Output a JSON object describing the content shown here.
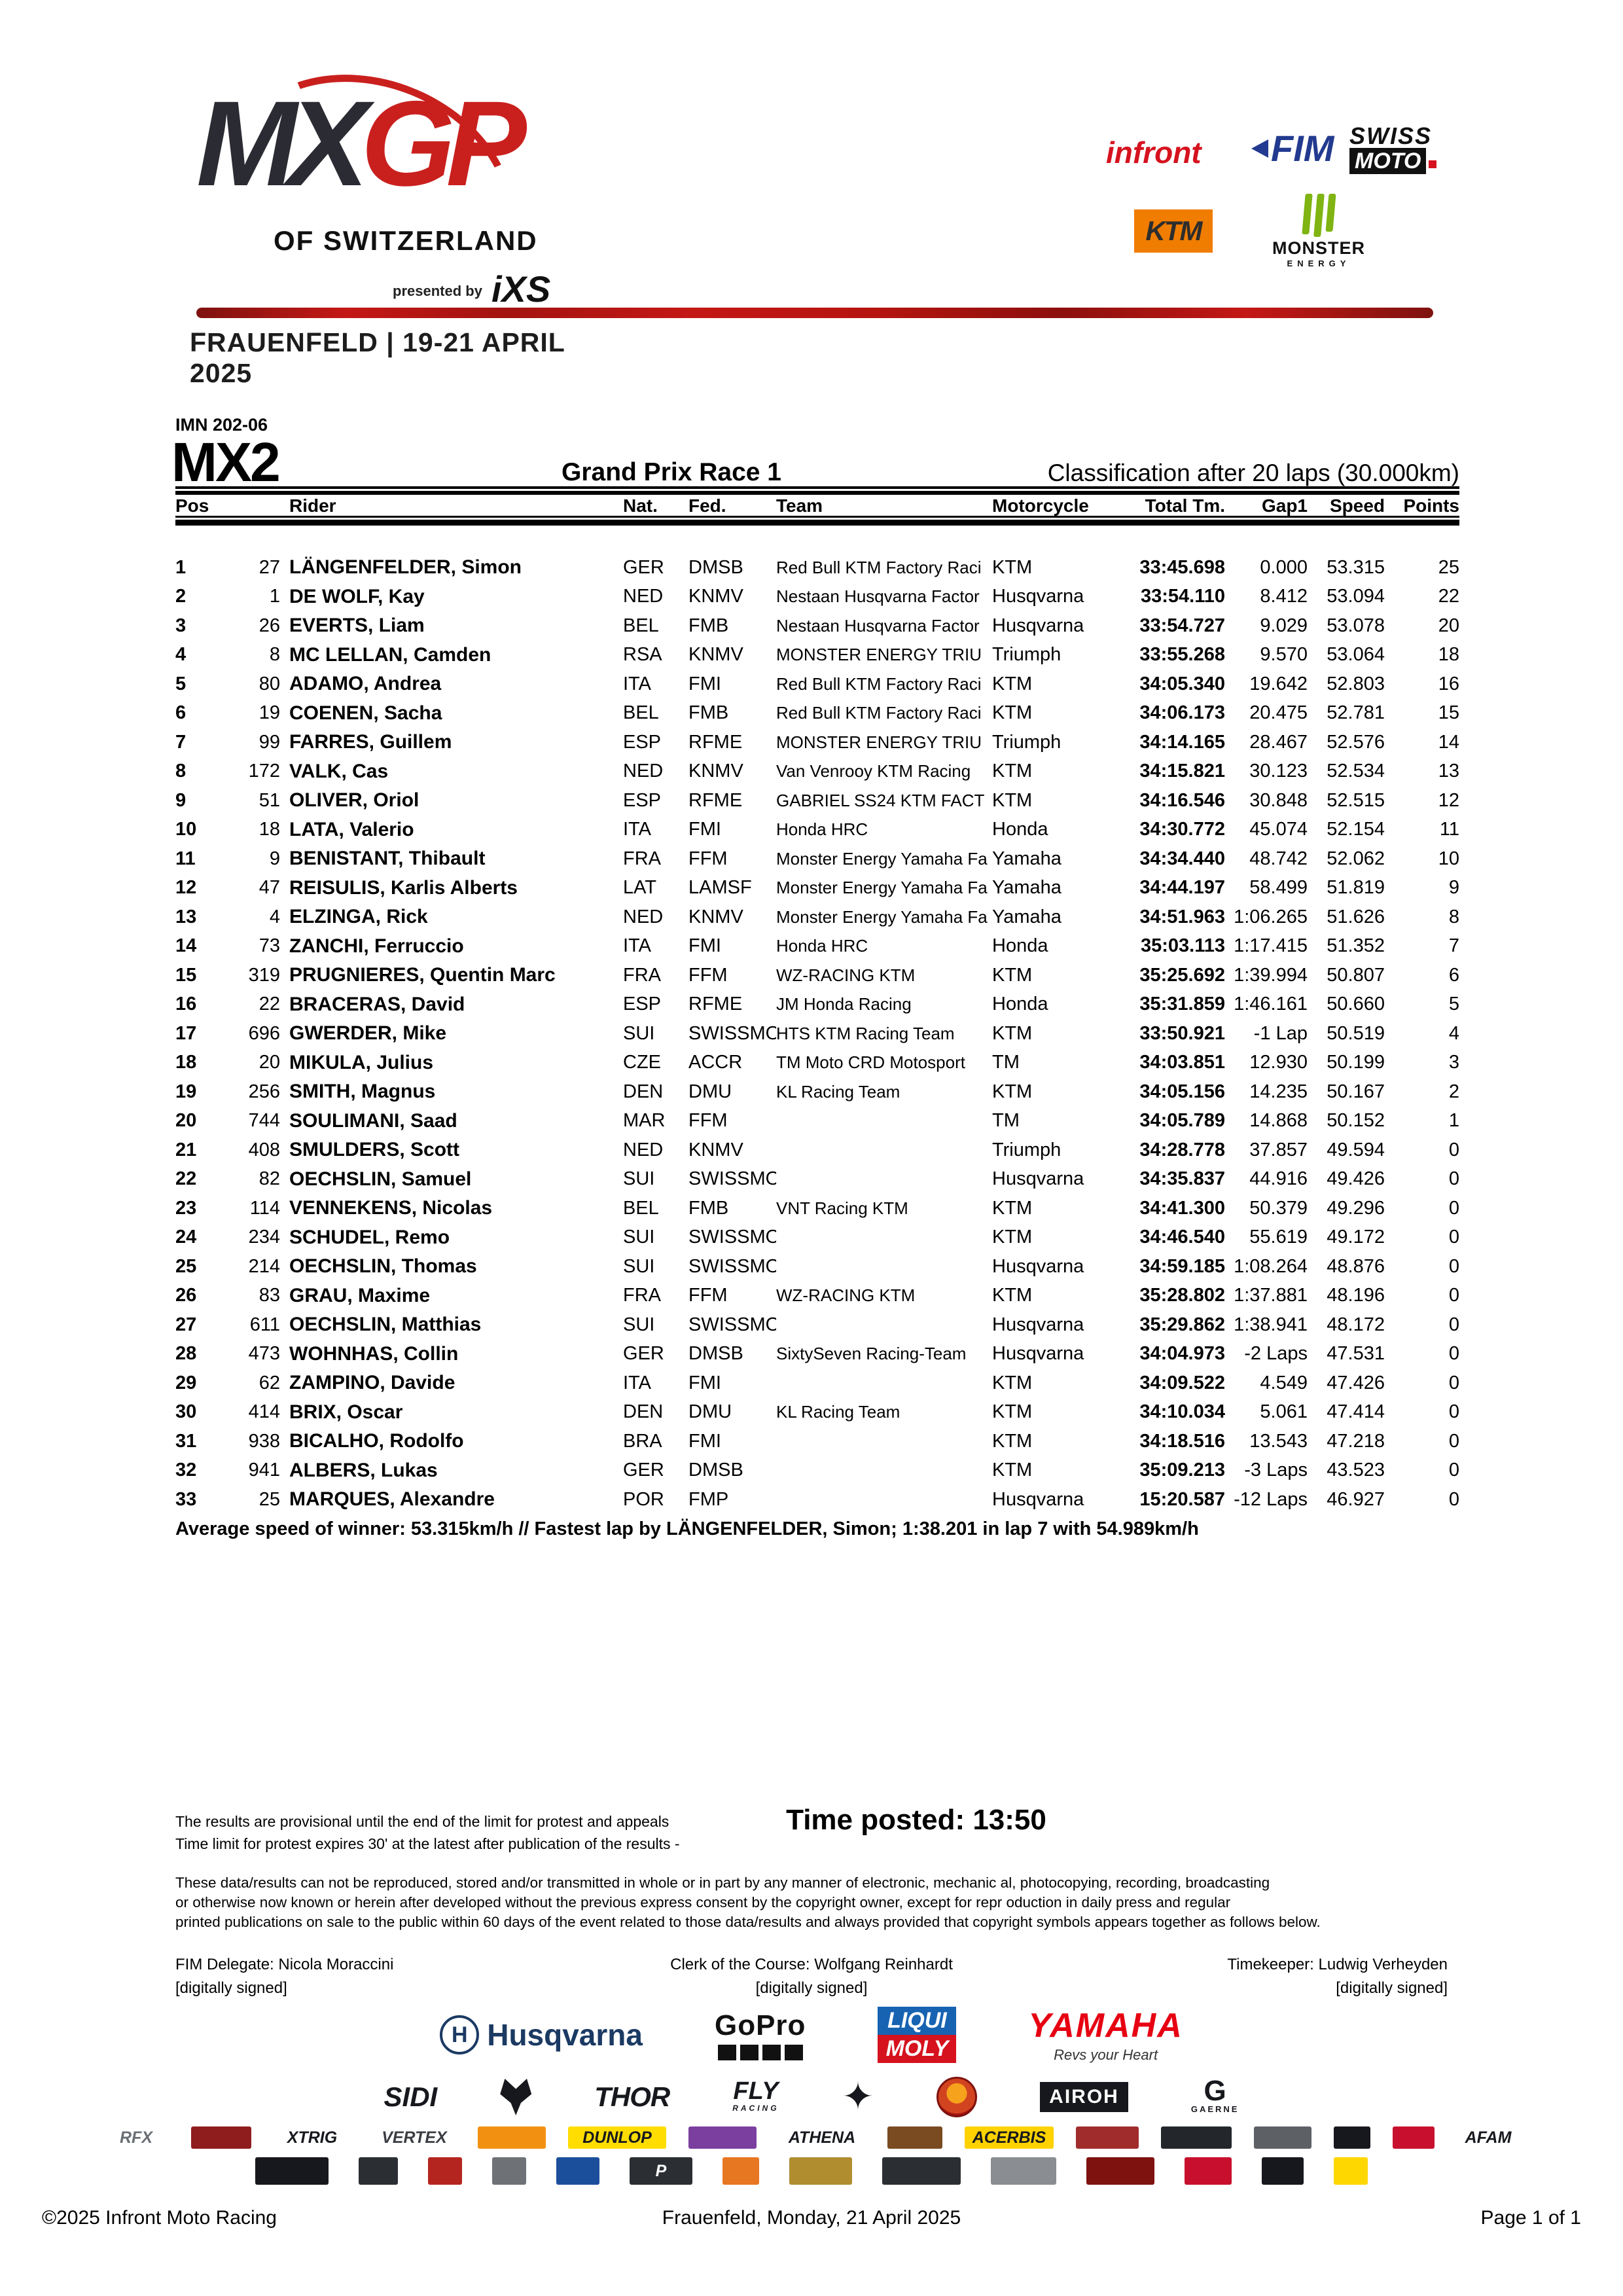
{
  "event_logo": {
    "mx": "MX",
    "gp": "GP",
    "subtitle": "OF SWITZERLAND",
    "presented_by": "presented by",
    "presenter": "iXS",
    "location": "FRAUENFELD | 19-21 APRIL 2025"
  },
  "sponsors_top": {
    "infront": "infront",
    "fim": "FIM",
    "swiss_line1": "SWISS",
    "swiss_line2": "MOTO",
    "ktm": "KTM",
    "monster_line1": "MONSTER",
    "monster_line2": "ENERGY"
  },
  "doc": {
    "imn": "IMN 202-06",
    "category": "MX2",
    "race_title": "Grand Prix Race 1",
    "classification": "Classification after 20 laps (30.000km)"
  },
  "table": {
    "columns": [
      "Pos",
      "Rider",
      "Nat.",
      "Fed.",
      "Team",
      "Motorcycle",
      "Total Tm.",
      "Gap1",
      "Speed",
      "Points"
    ],
    "rows": [
      {
        "pos": "1",
        "num": "27",
        "name": "LÄNGENFELDER, Simon",
        "nat": "GER",
        "fed": "DMSB",
        "team": "Red Bull KTM Factory Raci",
        "moto": "KTM",
        "total": "33:45.698",
        "gap": "0.000",
        "speed": "53.315",
        "pts": "25"
      },
      {
        "pos": "2",
        "num": "1",
        "name": "DE WOLF, Kay",
        "nat": "NED",
        "fed": "KNMV",
        "team": "Nestaan Husqvarna Factor",
        "moto": "Husqvarna",
        "total": "33:54.110",
        "gap": "8.412",
        "speed": "53.094",
        "pts": "22"
      },
      {
        "pos": "3",
        "num": "26",
        "name": "EVERTS, Liam",
        "nat": "BEL",
        "fed": "FMB",
        "team": "Nestaan Husqvarna Factor",
        "moto": "Husqvarna",
        "total": "33:54.727",
        "gap": "9.029",
        "speed": "53.078",
        "pts": "20"
      },
      {
        "pos": "4",
        "num": "8",
        "name": "MC LELLAN, Camden",
        "nat": "RSA",
        "fed": "KNMV",
        "team": "MONSTER ENERGY TRIU",
        "moto": "Triumph",
        "total": "33:55.268",
        "gap": "9.570",
        "speed": "53.064",
        "pts": "18"
      },
      {
        "pos": "5",
        "num": "80",
        "name": "ADAMO, Andrea",
        "nat": "ITA",
        "fed": "FMI",
        "team": "Red Bull KTM Factory Raci",
        "moto": "KTM",
        "total": "34:05.340",
        "gap": "19.642",
        "speed": "52.803",
        "pts": "16"
      },
      {
        "pos": "6",
        "num": "19",
        "name": "COENEN, Sacha",
        "nat": "BEL",
        "fed": "FMB",
        "team": "Red Bull KTM Factory Raci",
        "moto": "KTM",
        "total": "34:06.173",
        "gap": "20.475",
        "speed": "52.781",
        "pts": "15"
      },
      {
        "pos": "7",
        "num": "99",
        "name": "FARRES, Guillem",
        "nat": "ESP",
        "fed": "RFME",
        "team": "MONSTER ENERGY TRIU",
        "moto": "Triumph",
        "total": "34:14.165",
        "gap": "28.467",
        "speed": "52.576",
        "pts": "14"
      },
      {
        "pos": "8",
        "num": "172",
        "name": "VALK, Cas",
        "nat": "NED",
        "fed": "KNMV",
        "team": "Van Venrooy KTM Racing",
        "moto": "KTM",
        "total": "34:15.821",
        "gap": "30.123",
        "speed": "52.534",
        "pts": "13"
      },
      {
        "pos": "9",
        "num": "51",
        "name": "OLIVER, Oriol",
        "nat": "ESP",
        "fed": "RFME",
        "team": "GABRIEL SS24 KTM FACT",
        "moto": "KTM",
        "total": "34:16.546",
        "gap": "30.848",
        "speed": "52.515",
        "pts": "12"
      },
      {
        "pos": "10",
        "num": "18",
        "name": "LATA, Valerio",
        "nat": "ITA",
        "fed": "FMI",
        "team": "Honda HRC",
        "moto": "Honda",
        "total": "34:30.772",
        "gap": "45.074",
        "speed": "52.154",
        "pts": "11"
      },
      {
        "pos": "11",
        "num": "9",
        "name": "BENISTANT, Thibault",
        "nat": "FRA",
        "fed": "FFM",
        "team": "Monster Energy Yamaha Fa",
        "moto": "Yamaha",
        "total": "34:34.440",
        "gap": "48.742",
        "speed": "52.062",
        "pts": "10"
      },
      {
        "pos": "12",
        "num": "47",
        "name": "REISULIS, Karlis Alberts",
        "nat": "LAT",
        "fed": "LAMSF",
        "team": "Monster Energy Yamaha Fa",
        "moto": "Yamaha",
        "total": "34:44.197",
        "gap": "58.499",
        "speed": "51.819",
        "pts": "9"
      },
      {
        "pos": "13",
        "num": "4",
        "name": "ELZINGA, Rick",
        "nat": "NED",
        "fed": "KNMV",
        "team": "Monster Energy Yamaha Fa",
        "moto": "Yamaha",
        "total": "34:51.963",
        "gap": "1:06.265",
        "speed": "51.626",
        "pts": "8"
      },
      {
        "pos": "14",
        "num": "73",
        "name": "ZANCHI, Ferruccio",
        "nat": "ITA",
        "fed": "FMI",
        "team": "Honda HRC",
        "moto": "Honda",
        "total": "35:03.113",
        "gap": "1:17.415",
        "speed": "51.352",
        "pts": "7"
      },
      {
        "pos": "15",
        "num": "319",
        "name": "PRUGNIERES, Quentin Marc",
        "nat": "FRA",
        "fed": "FFM",
        "team": "WZ-RACING KTM",
        "moto": "KTM",
        "total": "35:25.692",
        "gap": "1:39.994",
        "speed": "50.807",
        "pts": "6"
      },
      {
        "pos": "16",
        "num": "22",
        "name": "BRACERAS, David",
        "nat": "ESP",
        "fed": "RFME",
        "team": "JM Honda Racing",
        "moto": "Honda",
        "total": "35:31.859",
        "gap": "1:46.161",
        "speed": "50.660",
        "pts": "5"
      },
      {
        "pos": "17",
        "num": "696",
        "name": "GWERDER, Mike",
        "nat": "SUI",
        "fed": "SWISSMO",
        "team": "HTS KTM Racing Team",
        "moto": "KTM",
        "total": "33:50.921",
        "gap": "-1 Lap",
        "speed": "50.519",
        "pts": "4"
      },
      {
        "pos": "18",
        "num": "20",
        "name": "MIKULA, Julius",
        "nat": "CZE",
        "fed": "ACCR",
        "team": "TM Moto CRD Motosport",
        "moto": "TM",
        "total": "34:03.851",
        "gap": "12.930",
        "speed": "50.199",
        "pts": "3"
      },
      {
        "pos": "19",
        "num": "256",
        "name": "SMITH, Magnus",
        "nat": "DEN",
        "fed": "DMU",
        "team": "KL Racing Team",
        "moto": "KTM",
        "total": "34:05.156",
        "gap": "14.235",
        "speed": "50.167",
        "pts": "2"
      },
      {
        "pos": "20",
        "num": "744",
        "name": "SOULIMANI, Saad",
        "nat": "MAR",
        "fed": "FFM",
        "team": "",
        "moto": "TM",
        "total": "34:05.789",
        "gap": "14.868",
        "speed": "50.152",
        "pts": "1"
      },
      {
        "pos": "21",
        "num": "408",
        "name": "SMULDERS, Scott",
        "nat": "NED",
        "fed": "KNMV",
        "team": "",
        "moto": "Triumph",
        "total": "34:28.778",
        "gap": "37.857",
        "speed": "49.594",
        "pts": "0"
      },
      {
        "pos": "22",
        "num": "82",
        "name": "OECHSLIN, Samuel",
        "nat": "SUI",
        "fed": "SWISSMO",
        "team": "",
        "moto": "Husqvarna",
        "total": "34:35.837",
        "gap": "44.916",
        "speed": "49.426",
        "pts": "0"
      },
      {
        "pos": "23",
        "num": "114",
        "name": "VENNEKENS, Nicolas",
        "nat": "BEL",
        "fed": "FMB",
        "team": "VNT Racing KTM",
        "moto": "KTM",
        "total": "34:41.300",
        "gap": "50.379",
        "speed": "49.296",
        "pts": "0"
      },
      {
        "pos": "24",
        "num": "234",
        "name": "SCHUDEL, Remo",
        "nat": "SUI",
        "fed": "SWISSMO",
        "team": "",
        "moto": "KTM",
        "total": "34:46.540",
        "gap": "55.619",
        "speed": "49.172",
        "pts": "0"
      },
      {
        "pos": "25",
        "num": "214",
        "name": "OECHSLIN, Thomas",
        "nat": "SUI",
        "fed": "SWISSMO",
        "team": "",
        "moto": "Husqvarna",
        "total": "34:59.185",
        "gap": "1:08.264",
        "speed": "48.876",
        "pts": "0"
      },
      {
        "pos": "26",
        "num": "83",
        "name": "GRAU, Maxime",
        "nat": "FRA",
        "fed": "FFM",
        "team": "WZ-RACING KTM",
        "moto": "KTM",
        "total": "35:28.802",
        "gap": "1:37.881",
        "speed": "48.196",
        "pts": "0"
      },
      {
        "pos": "27",
        "num": "611",
        "name": "OECHSLIN, Matthias",
        "nat": "SUI",
        "fed": "SWISSMO",
        "team": "",
        "moto": "Husqvarna",
        "total": "35:29.862",
        "gap": "1:38.941",
        "speed": "48.172",
        "pts": "0"
      },
      {
        "pos": "28",
        "num": "473",
        "name": "WOHNHAS, Collin",
        "nat": "GER",
        "fed": "DMSB",
        "team": "SixtySeven Racing-Team",
        "moto": "Husqvarna",
        "total": "34:04.973",
        "gap": "-2 Laps",
        "speed": "47.531",
        "pts": "0"
      },
      {
        "pos": "29",
        "num": "62",
        "name": "ZAMPINO, Davide",
        "nat": "ITA",
        "fed": "FMI",
        "team": "",
        "moto": "KTM",
        "total": "34:09.522",
        "gap": "4.549",
        "speed": "47.426",
        "pts": "0"
      },
      {
        "pos": "30",
        "num": "414",
        "name": "BRIX, Oscar",
        "nat": "DEN",
        "fed": "DMU",
        "team": "KL Racing Team",
        "moto": "KTM",
        "total": "34:10.034",
        "gap": "5.061",
        "speed": "47.414",
        "pts": "0"
      },
      {
        "pos": "31",
        "num": "938",
        "name": "BICALHO, Rodolfo",
        "nat": "BRA",
        "fed": "FMI",
        "team": "",
        "moto": "KTM",
        "total": "34:18.516",
        "gap": "13.543",
        "speed": "47.218",
        "pts": "0"
      },
      {
        "pos": "32",
        "num": "941",
        "name": "ALBERS, Lukas",
        "nat": "GER",
        "fed": "DMSB",
        "team": "",
        "moto": "KTM",
        "total": "35:09.213",
        "gap": "-3 Laps",
        "speed": "43.523",
        "pts": "0"
      },
      {
        "pos": "33",
        "num": "25",
        "name": "MARQUES, Alexandre",
        "nat": "POR",
        "fed": "FMP",
        "team": "",
        "moto": "Husqvarna",
        "total": "15:20.587",
        "gap": "-12 Laps",
        "speed": "46.927",
        "pts": "0"
      }
    ]
  },
  "summary": "Average speed of winner: 53.315km/h   //   Fastest lap by LÄNGENFELDER, Simon; 1:38.201 in lap 7 with 54.989km/h",
  "notes": {
    "line1": "The results are provisional until the end of the limit for protest and appeals",
    "line2": "Time limit for protest expires 30' at the latest after publication of the results -",
    "time_posted": "Time posted: 13:50"
  },
  "legal": [
    "These data/results can not be reproduced, stored and/or transmitted in whole or in part by any manner of electronic, mechanic al, photocopying, recording, broadcasting",
    "or otherwise now known or herein after developed without the previous express consent by the copyright owner, except for repr oduction in daily press and regular",
    "printed publications on sale to the public within 60 days of the event related to those data/results and always provided that  copyright symbols appears together as follows below."
  ],
  "officials": {
    "left_role": "FIM Delegate: Nicola Moraccini",
    "left_signed": "[digitally signed]",
    "center_role": "Clerk of the Course: Wolfgang Reinhardt",
    "center_signed": "[digitally signed]",
    "right_role": "Timekeeper: Ludwig Verheyden",
    "right_signed": "[digitally signed]"
  },
  "sponsors_bottom": {
    "row1": {
      "husqvarna_initial": "H",
      "husqvarna": "Husqvarna",
      "gopro": "GoPro",
      "liqui": "LIQUI",
      "moly": "MOLY",
      "yamaha": "YAMAHA",
      "yamaha_tag": "Revs your Heart"
    },
    "row2": {
      "sidi": "SIDI",
      "thor": "THOR",
      "fly": "FLY",
      "fly_sub": "RACING",
      "star": "✦",
      "airoh": "AIROH",
      "gaerne_g": "G",
      "gaerne": "GAERNE"
    },
    "row3": [
      {
        "label": "RFX",
        "bg": "",
        "fg": "#6a6f75",
        "w": 100
      },
      {
        "label": "",
        "bg": "#8f1d1d",
        "fg": "#ffffff",
        "w": 92
      },
      {
        "label": "XTRIG",
        "bg": "",
        "fg": "#16181d",
        "w": 118
      },
      {
        "label": "VERTEX",
        "bg": "",
        "fg": "#3a3d42",
        "w": 126
      },
      {
        "label": "",
        "bg": "#f29111",
        "fg": "#16181d",
        "w": 104
      },
      {
        "label": "DUNLOP",
        "bg": "#ffdd00",
        "fg": "#16181d",
        "w": 150
      },
      {
        "label": "",
        "bg": "#7b3fa0",
        "fg": "#ffffff",
        "w": 104
      },
      {
        "label": "ATHENA",
        "bg": "",
        "fg": "#16181d",
        "w": 132
      },
      {
        "label": "",
        "bg": "#7a4a21",
        "fg": "#ffffff",
        "w": 84
      },
      {
        "label": "ACERBIS",
        "bg": "#ffd200",
        "fg": "#16181d",
        "w": 136
      },
      {
        "label": "",
        "bg": "#a02c2c",
        "fg": "#ffffff",
        "w": 96
      },
      {
        "label": "",
        "bg": "#23272b",
        "fg": "#ffffff",
        "w": 108
      },
      {
        "label": "",
        "bg": "#5d6065",
        "fg": "#ffffff",
        "w": 88
      },
      {
        "label": "",
        "bg": "#16181d",
        "fg": "#ffffff",
        "w": 56
      },
      {
        "label": "",
        "bg": "#c8102e",
        "fg": "#ffffff",
        "w": 64
      },
      {
        "label": "AFAM",
        "bg": "",
        "fg": "#16181d",
        "w": 96
      }
    ],
    "row4": [
      {
        "label": "",
        "bg": "#16181d",
        "fg": "#ffd200",
        "w": 112
      },
      {
        "label": "",
        "bg": "#2b2f33",
        "fg": "#ffffff",
        "w": 60
      },
      {
        "label": "",
        "bg": "#b5251f",
        "fg": "#ffffff",
        "w": 52
      },
      {
        "label": "",
        "bg": "#6e7277",
        "fg": "#ffffff",
        "w": 52
      },
      {
        "label": "",
        "bg": "#1b4f9c",
        "fg": "#ffffff",
        "w": 66
      },
      {
        "label": "P",
        "bg": "#2b2f33",
        "fg": "#ffffff",
        "w": 96
      },
      {
        "label": "",
        "bg": "#e87722",
        "fg": "#ffffff",
        "w": 56
      },
      {
        "label": "",
        "bg": "#b08d2f",
        "fg": "#ffffff",
        "w": 96
      },
      {
        "label": "",
        "bg": "#2b2f33",
        "fg": "#ffffff",
        "w": 120
      },
      {
        "label": "",
        "bg": "#8a8d91",
        "fg": "#ffffff",
        "w": 100
      },
      {
        "label": "",
        "bg": "#7e120f",
        "fg": "#ffffff",
        "w": 104
      },
      {
        "label": "",
        "bg": "#c8102e",
        "fg": "#ffffff",
        "w": 72
      },
      {
        "label": "",
        "bg": "#16181d",
        "fg": "#ffffff",
        "w": 64
      },
      {
        "label": "",
        "bg": "#ffd700",
        "fg": "#16181d",
        "w": 52
      }
    ]
  },
  "footer": {
    "left": "©2025 Infront Moto Racing",
    "center": "Frauenfeld, Monday, 21 April 2025",
    "right": "Page 1 of 1"
  }
}
